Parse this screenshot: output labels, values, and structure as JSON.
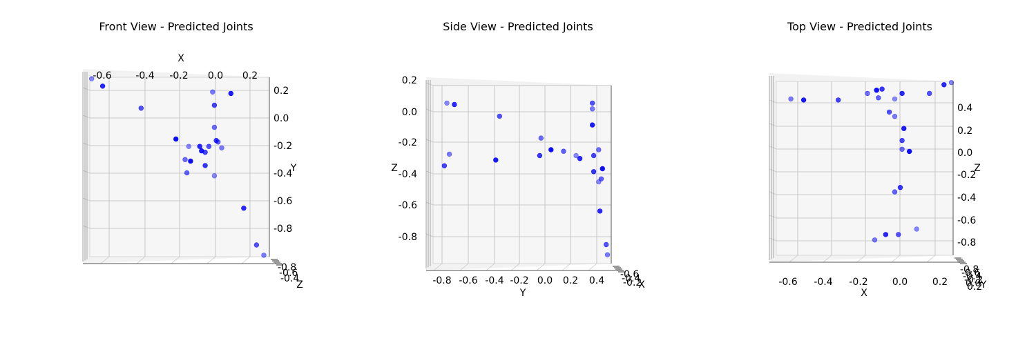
{
  "chart_data": [
    {
      "type": "scatter",
      "title": "Front View - Predicted Joints",
      "xlabel": "X",
      "ylabel": "Y",
      "zlabel": "Z",
      "xticks": [
        "-0.6",
        "-0.4",
        "-0.2",
        "0.0",
        "0.2"
      ],
      "yticks": [
        "0.2",
        "0.0",
        "-0.2",
        "-0.4",
        "-0.6",
        "-0.8"
      ],
      "zticks": [
        "-0.8",
        "-0.6",
        "-0.4"
      ],
      "xlim": [
        -0.68,
        0.3
      ],
      "ylim": [
        -0.97,
        0.25
      ],
      "grid": true,
      "color": "#0000ff",
      "points": [
        {
          "x": -0.67,
          "y": 0.24
        },
        {
          "x": -0.61,
          "y": 0.19
        },
        {
          "x": -0.4,
          "y": 0.04
        },
        {
          "x": -0.01,
          "y": 0.15
        },
        {
          "x": 0.09,
          "y": 0.14
        },
        {
          "x": 0.0,
          "y": 0.06
        },
        {
          "x": 0.0,
          "y": -0.09
        },
        {
          "x": -0.21,
          "y": -0.17
        },
        {
          "x": 0.01,
          "y": -0.18
        },
        {
          "x": 0.02,
          "y": -0.19
        },
        {
          "x": -0.14,
          "y": -0.22
        },
        {
          "x": -0.08,
          "y": -0.22
        },
        {
          "x": -0.03,
          "y": -0.22
        },
        {
          "x": 0.04,
          "y": -0.23
        },
        {
          "x": -0.07,
          "y": -0.25
        },
        {
          "x": -0.05,
          "y": -0.26
        },
        {
          "x": -0.16,
          "y": -0.31
        },
        {
          "x": -0.13,
          "y": -0.32
        },
        {
          "x": -0.05,
          "y": -0.35
        },
        {
          "x": -0.15,
          "y": -0.4
        },
        {
          "x": 0.0,
          "y": -0.42
        },
        {
          "x": 0.16,
          "y": -0.64
        },
        {
          "x": 0.23,
          "y": -0.89
        },
        {
          "x": 0.27,
          "y": -0.96
        }
      ]
    },
    {
      "type": "scatter",
      "title": "Side View - Predicted Joints",
      "xlabel": "Y",
      "ylabel": "Z",
      "zlabel": "X",
      "xticks": [
        "-0.8",
        "-0.6",
        "-0.4",
        "-0.2",
        "0.0",
        "0.2",
        "0.4"
      ],
      "yticks": [
        "0.2",
        "0.0",
        "-0.2",
        "-0.4",
        "-0.6",
        "-0.8"
      ],
      "zticks": [
        "-0.6",
        "-0.4",
        "-0.2"
      ],
      "xlim": [
        -0.92,
        0.5
      ],
      "ylim": [
        -0.98,
        0.24
      ],
      "grid": true,
      "color": "#0000ff",
      "points": [
        {
          "x": -0.81,
          "y": 0.12
        },
        {
          "x": -0.75,
          "y": 0.11
        },
        {
          "x": -0.39,
          "y": 0.03
        },
        {
          "x": -0.79,
          "y": -0.23
        },
        {
          "x": -0.42,
          "y": -0.27
        },
        {
          "x": -0.83,
          "y": -0.31
        },
        {
          "x": -0.06,
          "y": -0.12
        },
        {
          "x": 0.02,
          "y": -0.2
        },
        {
          "x": -0.07,
          "y": -0.24
        },
        {
          "x": 0.12,
          "y": -0.21
        },
        {
          "x": 0.22,
          "y": -0.24
        },
        {
          "x": 0.25,
          "y": -0.26
        },
        {
          "x": 0.35,
          "y": 0.12
        },
        {
          "x": 0.35,
          "y": 0.08
        },
        {
          "x": 0.35,
          "y": -0.03
        },
        {
          "x": 0.36,
          "y": -0.24
        },
        {
          "x": 0.4,
          "y": -0.2
        },
        {
          "x": 0.43,
          "y": -0.33
        },
        {
          "x": 0.36,
          "y": -0.35
        },
        {
          "x": 0.42,
          "y": -0.4
        },
        {
          "x": 0.4,
          "y": -0.42
        },
        {
          "x": 0.41,
          "y": -0.62
        },
        {
          "x": 0.46,
          "y": -0.85
        },
        {
          "x": 0.47,
          "y": -0.92
        }
      ]
    },
    {
      "type": "scatter",
      "title": "Top View - Predicted Joints",
      "xlabel": "X",
      "ylabel": "Z",
      "zlabel": "Y",
      "xticks": [
        "-0.6",
        "-0.4",
        "-0.2",
        "0.0",
        "0.2"
      ],
      "yticks": [
        "0.4",
        "0.2",
        "0.0",
        "-0.2",
        "-0.4",
        "-0.6",
        "-0.8"
      ],
      "zticks": [
        "-0.8",
        "-0.6",
        "-0.4",
        "-0.2",
        "0.0",
        "0.2"
      ],
      "xlim": [
        -0.7,
        0.27
      ],
      "ylim": [
        -0.98,
        0.61
      ],
      "grid": true,
      "color": "#0000ff",
      "points": [
        {
          "x": 0.26,
          "y": 0.6
        },
        {
          "x": 0.22,
          "y": 0.58
        },
        {
          "x": 0.14,
          "y": 0.5
        },
        {
          "x": -0.62,
          "y": 0.45
        },
        {
          "x": -0.55,
          "y": 0.44
        },
        {
          "x": -0.36,
          "y": 0.44
        },
        {
          "x": -0.2,
          "y": 0.5
        },
        {
          "x": -0.15,
          "y": 0.53
        },
        {
          "x": -0.12,
          "y": 0.54
        },
        {
          "x": -0.14,
          "y": 0.46
        },
        {
          "x": -0.05,
          "y": 0.45
        },
        {
          "x": -0.01,
          "y": 0.5
        },
        {
          "x": -0.08,
          "y": 0.33
        },
        {
          "x": -0.05,
          "y": 0.29
        },
        {
          "x": 0.0,
          "y": 0.18
        },
        {
          "x": -0.01,
          "y": 0.07
        },
        {
          "x": -0.01,
          "y": -0.01
        },
        {
          "x": 0.03,
          "y": -0.03
        },
        {
          "x": -0.02,
          "y": -0.36
        },
        {
          "x": -0.05,
          "y": -0.4
        },
        {
          "x": 0.07,
          "y": -0.74
        },
        {
          "x": -0.1,
          "y": -0.79
        },
        {
          "x": -0.03,
          "y": -0.79
        },
        {
          "x": -0.16,
          "y": -0.84
        }
      ]
    }
  ]
}
